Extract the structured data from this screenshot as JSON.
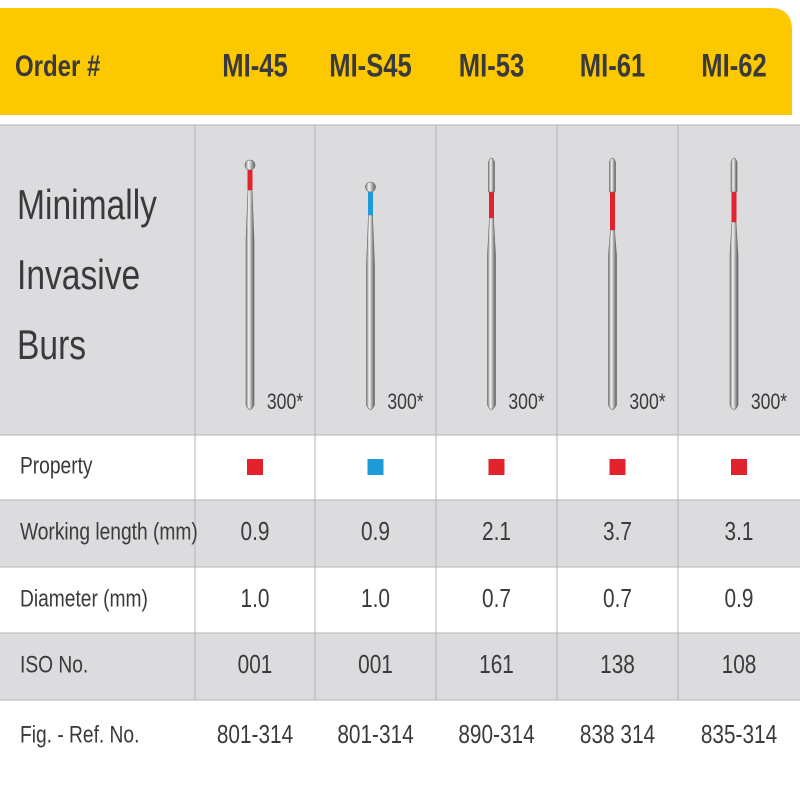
{
  "header": {
    "label": "Order #",
    "products": [
      "MI-45",
      "MI-S45",
      "MI-53",
      "MI-61",
      "MI-62"
    ]
  },
  "title_lines": [
    "Minimally",
    "Invasive",
    "Burs"
  ],
  "burs": [
    {
      "shank": "300*",
      "color": "#e2232e"
    },
    {
      "shank": "300*",
      "color": "#1e9ad6"
    },
    {
      "shank": "300*",
      "color": "#e2232e"
    },
    {
      "shank": "300*",
      "color": "#e2232e"
    },
    {
      "shank": "300*",
      "color": "#e2232e"
    }
  ],
  "property": {
    "label": "Property"
  },
  "rows": [
    {
      "label": "Working length (mm)",
      "cells": [
        "0.9",
        "0.9",
        "2.1",
        "3.7",
        "3.1"
      ]
    },
    {
      "label": "Diameter (mm)",
      "cells": [
        "1.0",
        "1.0",
        "0.7",
        "0.7",
        "0.9"
      ]
    },
    {
      "label": "ISO No.",
      "cells": [
        "001",
        "001",
        "161",
        "138",
        "108"
      ]
    },
    {
      "label": "Fig. - Ref. No.",
      "cells": [
        "801-314",
        "801-314",
        "890-314",
        "838 314",
        "835-314"
      ]
    }
  ]
}
